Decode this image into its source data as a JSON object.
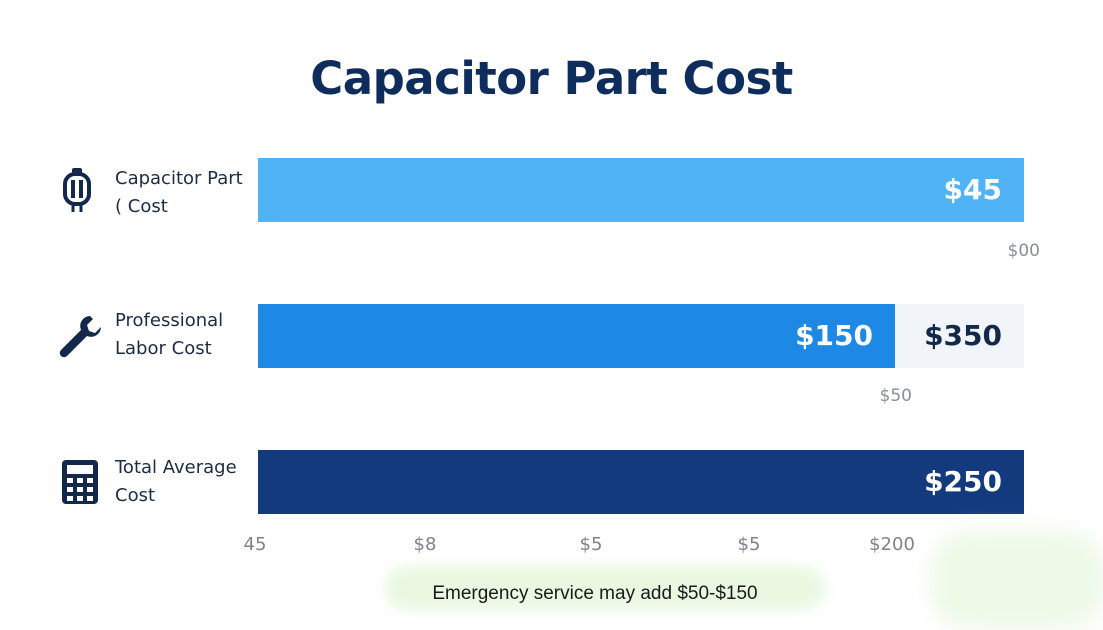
{
  "chart_data": {
    "type": "bar",
    "orientation": "horizontal",
    "title": "Capacitor Part Cost",
    "categories": [
      "Capacitor Part ( Cost",
      "Professional Labor Cost",
      "Total Average Cost"
    ],
    "rows": [
      {
        "label_line1": "Capacitor Part",
        "label_line2": "( Cost",
        "icon": "capacitor-icon",
        "segments": [
          {
            "value_label": "$45",
            "fraction": 1.0,
            "color": "#4fb3f5"
          }
        ],
        "sub_tick": "$00"
      },
      {
        "label_line1": "Professional",
        "label_line2": "Labor Cost",
        "icon": "wrench-icon",
        "segments": [
          {
            "value_label": "$150",
            "fraction": 0.832,
            "color": "#1e88e5"
          },
          {
            "value_label": "$350",
            "fraction": 0.168,
            "color": "#f1f4f8"
          }
        ],
        "sub_tick": "$50"
      },
      {
        "label_line1": "Total Average",
        "label_line2": "Cost",
        "icon": "calculator-icon",
        "segments": [
          {
            "value_label": "$250",
            "fraction": 1.0,
            "color": "#123a7c"
          }
        ],
        "sub_tick": ""
      }
    ],
    "x_tick_labels": [
      "45",
      "$8",
      "$5",
      "$5",
      "$200"
    ],
    "note": "Emergency service may add $50-$150",
    "grid": false,
    "legend": "none"
  }
}
